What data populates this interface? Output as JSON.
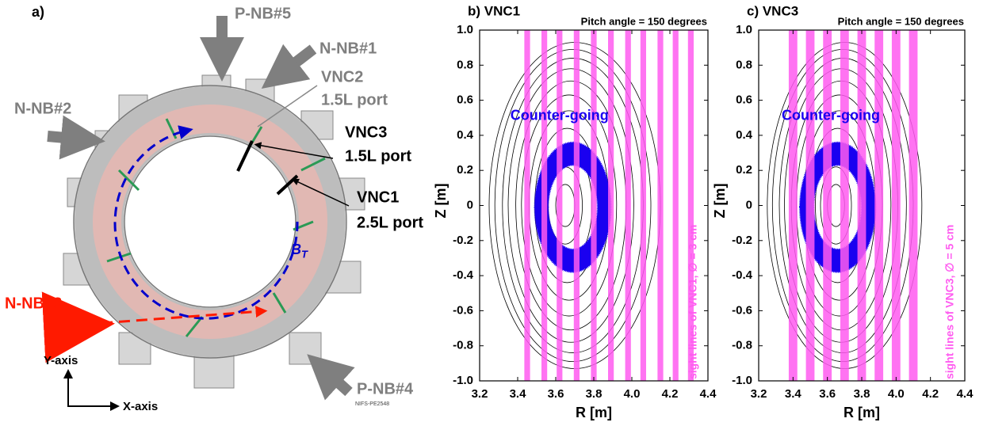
{
  "diagram": {
    "panel_label": "a)",
    "labels": [
      "P-NB#5",
      "N-NB#1",
      "VNC2",
      "1.5L port",
      "N-NB#2",
      "VNC3",
      "1.5L port",
      "VNC1",
      "2.5L port",
      "B",
      "T",
      "N-NB#3",
      "Y-axis",
      "X-axis",
      "P-NB#4",
      "NIFS-PE2548"
    ]
  },
  "chart_data": [
    {
      "type": "sightlines",
      "title": "b) VNC1",
      "subtitle": "Pitch angle = 150 degrees",
      "xlabel": "R [m]",
      "ylabel": "Z [m]",
      "annotation": "Counter-going",
      "sight_line_label": "sight lines of VNC1, ∅ = 3 cm",
      "sight_lines": {
        "color": "#ff5bf0",
        "width": 0.03,
        "r": [
          3.45,
          3.54,
          3.62,
          3.71,
          3.8,
          3.89,
          3.98,
          4.06,
          4.15,
          4.23,
          4.31
        ]
      },
      "orbit": {
        "color": "#1a00f0",
        "center": [
          3.69,
          -0.01
        ],
        "outer": [
          0.2,
          0.37
        ],
        "inner": [
          0.13,
          0.24
        ]
      },
      "contours": [
        [
          3.65,
          0.05,
          0.12
        ],
        [
          3.65,
          0.09,
          0.22
        ],
        [
          3.66,
          0.13,
          0.33
        ],
        [
          3.66,
          0.17,
          0.44
        ],
        [
          3.67,
          0.21,
          0.54
        ],
        [
          3.67,
          0.25,
          0.63
        ],
        [
          3.68,
          0.29,
          0.71
        ],
        [
          3.68,
          0.33,
          0.78
        ],
        [
          3.69,
          0.37,
          0.84
        ],
        [
          3.69,
          0.41,
          0.89
        ],
        [
          3.7,
          0.45,
          0.93
        ]
      ],
      "xlim": [
        3.2,
        4.4
      ],
      "ylim": [
        -1,
        1
      ],
      "xticks": [
        3.2,
        3.4,
        3.6,
        3.8,
        {
          "value": 4,
          "label": "4.0"
        },
        4.2,
        4.4
      ],
      "yticks": [
        {
          "value": -1,
          "label": "-1.0"
        },
        -0.8,
        -0.6,
        -0.4,
        -0.2,
        0,
        0.2,
        0.4,
        0.6,
        0.8,
        {
          "value": 1,
          "label": "1.0"
        }
      ]
    },
    {
      "type": "sightlines",
      "title": "c) VNC3",
      "subtitle": "Pitch angle = 150 degrees",
      "xlabel": "R [m]",
      "ylabel": "Z [m]",
      "annotation": "Counter-going",
      "sight_line_label": "sight lines of VNC3, ∅ = 5 cm",
      "sight_lines": {
        "color": "#ff5bf0",
        "width": 0.05,
        "r": [
          3.4,
          3.5,
          3.6,
          3.7,
          3.8,
          3.9,
          4.0,
          4.1
        ]
      },
      "orbit": {
        "color": "#1a00f0",
        "center": [
          3.66,
          -0.01
        ],
        "outer": [
          0.22,
          0.37
        ],
        "inner": [
          0.14,
          0.24
        ]
      },
      "contours": [
        [
          3.65,
          0.05,
          0.12
        ],
        [
          3.65,
          0.09,
          0.22
        ],
        [
          3.66,
          0.13,
          0.33
        ],
        [
          3.66,
          0.17,
          0.44
        ],
        [
          3.67,
          0.21,
          0.54
        ],
        [
          3.67,
          0.25,
          0.63
        ],
        [
          3.68,
          0.29,
          0.71
        ],
        [
          3.68,
          0.33,
          0.78
        ],
        [
          3.69,
          0.37,
          0.84
        ],
        [
          3.69,
          0.41,
          0.89
        ],
        [
          3.7,
          0.45,
          0.93
        ]
      ],
      "xlim": [
        3.2,
        4.4
      ],
      "ylim": [
        -1,
        1
      ],
      "xticks": [
        3.2,
        3.4,
        3.6,
        3.8,
        {
          "value": 4,
          "label": "4.0"
        },
        4.2,
        4.4
      ],
      "yticks": [
        {
          "value": -1,
          "label": "-1.0"
        },
        -0.8,
        -0.6,
        -0.4,
        -0.2,
        0,
        0.2,
        0.4,
        0.6,
        0.8,
        {
          "value": 1,
          "label": "1.0"
        }
      ]
    }
  ]
}
